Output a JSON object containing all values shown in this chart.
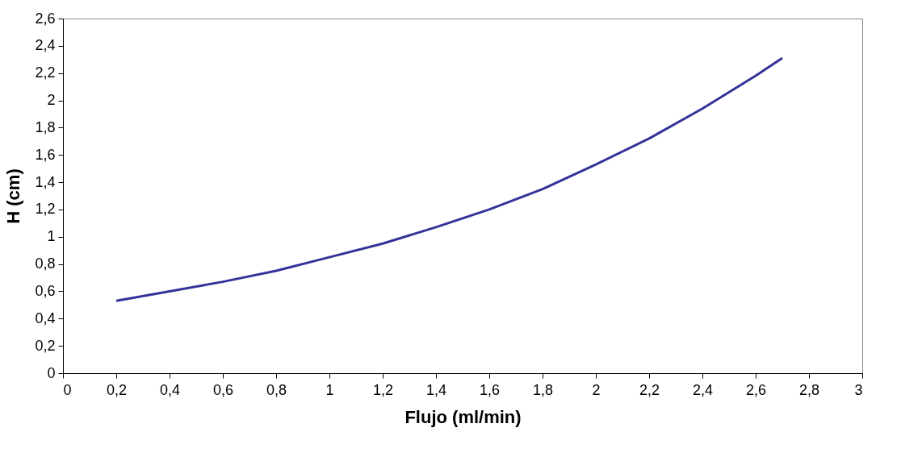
{
  "chart_data": {
    "type": "line",
    "xlabel": "Flujo (ml/min)",
    "ylabel": "H (cm)",
    "x": [
      0.2,
      0.4,
      0.6,
      0.8,
      1.0,
      1.2,
      1.4,
      1.6,
      1.8,
      2.0,
      2.2,
      2.4,
      2.6,
      2.7
    ],
    "series": [
      {
        "color": "#333399",
        "values": [
          0.53,
          0.6,
          0.67,
          0.75,
          0.85,
          0.95,
          1.07,
          1.2,
          1.35,
          1.53,
          1.72,
          1.94,
          2.18,
          2.31
        ]
      }
    ],
    "xlim": [
      0,
      3
    ],
    "ylim": [
      0,
      2.6
    ],
    "xticks": [
      0,
      {
        "value": 0.2,
        "label": "0,2"
      },
      {
        "value": 0.4,
        "label": "0,4"
      },
      {
        "value": 0.6,
        "label": "0,6"
      },
      {
        "value": 0.8,
        "label": "0,8"
      },
      1,
      {
        "value": 1.2,
        "label": "1,2"
      },
      {
        "value": 1.4,
        "label": "1,4"
      },
      {
        "value": 1.6,
        "label": "1,6"
      },
      {
        "value": 1.8,
        "label": "1,8"
      },
      2,
      {
        "value": 2.2,
        "label": "2,2"
      },
      {
        "value": 2.4,
        "label": "2,4"
      },
      {
        "value": 2.6,
        "label": "2,6"
      },
      {
        "value": 2.8,
        "label": "2,8"
      },
      3
    ],
    "yticks": [
      0,
      {
        "value": 0.2,
        "label": "0,2"
      },
      {
        "value": 0.4,
        "label": "0,4"
      },
      {
        "value": 0.6,
        "label": "0,6"
      },
      {
        "value": 0.8,
        "label": "0,8"
      },
      1,
      {
        "value": 1.2,
        "label": "1,2"
      },
      {
        "value": 1.4,
        "label": "1,4"
      },
      {
        "value": 1.6,
        "label": "1,6"
      },
      {
        "value": 1.8,
        "label": "1,8"
      },
      2,
      {
        "value": 2.2,
        "label": "2,2"
      },
      {
        "value": 2.4,
        "label": "2,4"
      },
      {
        "value": 2.6,
        "label": "2,6"
      }
    ],
    "grid": false,
    "marker": "none",
    "line_style": "solid"
  }
}
